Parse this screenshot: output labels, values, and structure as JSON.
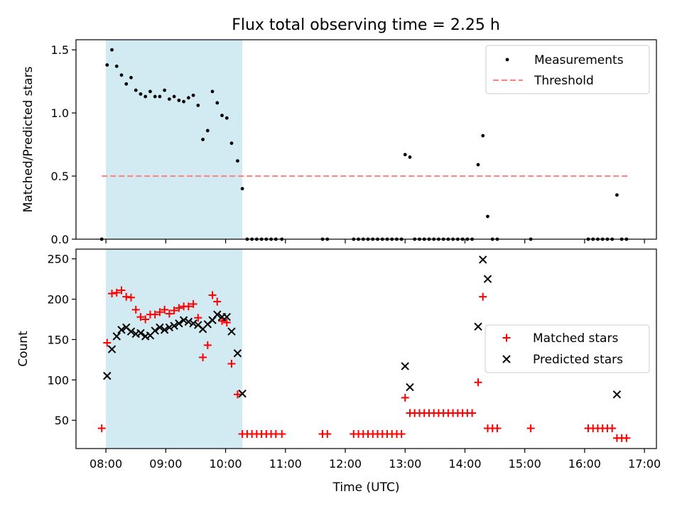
{
  "chart_data": [
    {
      "type": "scatter",
      "panel": "top",
      "title": "Flux total observing time = 2.25 h",
      "xlabel": "",
      "ylabel": "Matched/Predicted stars",
      "xlim": [
        7.5,
        17.2
      ],
      "ylim": [
        0,
        1.58
      ],
      "yticks": [
        0,
        0.5,
        1.0,
        1.5
      ],
      "ytick_labels": [
        "0.0",
        "0.5",
        "1.0",
        "1.5"
      ],
      "shaded_span_hours": [
        8.0,
        10.28
      ],
      "threshold": {
        "y": 0.5,
        "x_range": [
          7.93,
          16.75
        ],
        "color": "#ff7f7f"
      },
      "legend": {
        "position": "top-right",
        "entries": [
          "Measurements",
          "Threshold"
        ]
      },
      "series": [
        {
          "name": "Measurements",
          "marker": "dot",
          "color": "#000000",
          "points": [
            [
              7.93,
              0.0
            ],
            [
              8.02,
              1.38
            ],
            [
              8.1,
              1.5
            ],
            [
              8.18,
              1.37
            ],
            [
              8.26,
              1.3
            ],
            [
              8.34,
              1.23
            ],
            [
              8.42,
              1.28
            ],
            [
              8.5,
              1.18
            ],
            [
              8.58,
              1.15
            ],
            [
              8.66,
              1.13
            ],
            [
              8.74,
              1.17
            ],
            [
              8.82,
              1.13
            ],
            [
              8.9,
              1.13
            ],
            [
              8.98,
              1.18
            ],
            [
              9.06,
              1.11
            ],
            [
              9.14,
              1.13
            ],
            [
              9.22,
              1.1
            ],
            [
              9.3,
              1.09
            ],
            [
              9.38,
              1.12
            ],
            [
              9.46,
              1.14
            ],
            [
              9.54,
              1.06
            ],
            [
              9.62,
              0.79
            ],
            [
              9.7,
              0.86
            ],
            [
              9.78,
              1.17
            ],
            [
              9.86,
              1.08
            ],
            [
              9.94,
              0.98
            ],
            [
              10.02,
              0.96
            ],
            [
              10.1,
              0.76
            ],
            [
              10.2,
              0.62
            ],
            [
              10.28,
              0.4
            ],
            [
              10.36,
              0.0
            ],
            [
              10.44,
              0.0
            ],
            [
              10.52,
              0.0
            ],
            [
              10.6,
              0.0
            ],
            [
              10.68,
              0.0
            ],
            [
              10.76,
              0.0
            ],
            [
              10.84,
              0.0
            ],
            [
              10.94,
              0.0
            ],
            [
              11.62,
              0.0
            ],
            [
              11.7,
              0.0
            ],
            [
              12.14,
              0.0
            ],
            [
              12.22,
              0.0
            ],
            [
              12.3,
              0.0
            ],
            [
              12.38,
              0.0
            ],
            [
              12.46,
              0.0
            ],
            [
              12.54,
              0.0
            ],
            [
              12.62,
              0.0
            ],
            [
              12.7,
              0.0
            ],
            [
              12.78,
              0.0
            ],
            [
              12.86,
              0.0
            ],
            [
              12.94,
              0.0
            ],
            [
              13.0,
              0.67
            ],
            [
              13.08,
              0.65
            ],
            [
              13.16,
              0.0
            ],
            [
              13.24,
              0.0
            ],
            [
              13.32,
              0.0
            ],
            [
              13.4,
              0.0
            ],
            [
              13.48,
              0.0
            ],
            [
              13.56,
              0.0
            ],
            [
              13.64,
              0.0
            ],
            [
              13.72,
              0.0
            ],
            [
              13.8,
              0.0
            ],
            [
              13.88,
              0.0
            ],
            [
              13.96,
              0.0
            ],
            [
              14.04,
              0.0
            ],
            [
              14.12,
              0.0
            ],
            [
              14.22,
              0.59
            ],
            [
              14.3,
              0.82
            ],
            [
              14.38,
              0.18
            ],
            [
              14.46,
              0.0
            ],
            [
              14.54,
              0.0
            ],
            [
              15.1,
              0.0
            ],
            [
              16.06,
              0.0
            ],
            [
              16.14,
              0.0
            ],
            [
              16.22,
              0.0
            ],
            [
              16.3,
              0.0
            ],
            [
              16.38,
              0.0
            ],
            [
              16.46,
              0.0
            ],
            [
              16.54,
              0.35
            ],
            [
              16.62,
              0.0
            ],
            [
              16.7,
              0.0
            ]
          ]
        }
      ]
    },
    {
      "type": "scatter",
      "panel": "bottom",
      "title": "",
      "xlabel": "Time (UTC)",
      "ylabel": "Count",
      "xlim": [
        7.5,
        17.2
      ],
      "ylim": [
        15,
        262
      ],
      "yticks": [
        50,
        100,
        150,
        200,
        250
      ],
      "ytick_labels": [
        "50",
        "100",
        "150",
        "200",
        "250"
      ],
      "xticks": [
        8,
        9,
        10,
        11,
        12,
        13,
        14,
        15,
        16,
        17
      ],
      "xtick_labels": [
        "08:00",
        "09:00",
        "10:00",
        "11:00",
        "12:00",
        "13:00",
        "14:00",
        "15:00",
        "16:00",
        "17:00"
      ],
      "shaded_span_hours": [
        8.0,
        10.28
      ],
      "legend": {
        "position": "center-right",
        "entries": [
          "Matched stars",
          "Predicted stars"
        ]
      },
      "series": [
        {
          "name": "Matched stars",
          "marker": "plus",
          "color": "#ff0000",
          "points": [
            [
              7.93,
              40
            ],
            [
              8.02,
              146
            ],
            [
              8.1,
              207
            ],
            [
              8.18,
              208
            ],
            [
              8.26,
              211
            ],
            [
              8.34,
              203
            ],
            [
              8.42,
              202
            ],
            [
              8.5,
              187
            ],
            [
              8.58,
              178
            ],
            [
              8.66,
              175
            ],
            [
              8.74,
              181
            ],
            [
              8.82,
              181
            ],
            [
              8.9,
              184
            ],
            [
              8.98,
              187
            ],
            [
              9.06,
              182
            ],
            [
              9.14,
              186
            ],
            [
              9.22,
              189
            ],
            [
              9.3,
              191
            ],
            [
              9.38,
              191
            ],
            [
              9.46,
              194
            ],
            [
              9.54,
              177
            ],
            [
              9.62,
              128
            ],
            [
              9.7,
              143
            ],
            [
              9.78,
              205
            ],
            [
              9.86,
              197
            ],
            [
              9.94,
              173
            ],
            [
              10.02,
              171
            ],
            [
              10.1,
              120
            ],
            [
              10.2,
              82
            ],
            [
              10.28,
              33
            ],
            [
              10.36,
              33
            ],
            [
              10.44,
              33
            ],
            [
              10.52,
              33
            ],
            [
              10.6,
              33
            ],
            [
              10.68,
              33
            ],
            [
              10.76,
              33
            ],
            [
              10.84,
              33
            ],
            [
              10.94,
              33
            ],
            [
              11.62,
              33
            ],
            [
              11.7,
              33
            ],
            [
              12.14,
              33
            ],
            [
              12.22,
              33
            ],
            [
              12.3,
              33
            ],
            [
              12.38,
              33
            ],
            [
              12.46,
              33
            ],
            [
              12.54,
              33
            ],
            [
              12.62,
              33
            ],
            [
              12.7,
              33
            ],
            [
              12.78,
              33
            ],
            [
              12.86,
              33
            ],
            [
              12.94,
              33
            ],
            [
              13.0,
              78
            ],
            [
              13.08,
              59
            ],
            [
              13.16,
              59
            ],
            [
              13.24,
              59
            ],
            [
              13.32,
              59
            ],
            [
              13.4,
              59
            ],
            [
              13.48,
              59
            ],
            [
              13.56,
              59
            ],
            [
              13.64,
              59
            ],
            [
              13.72,
              59
            ],
            [
              13.8,
              59
            ],
            [
              13.88,
              59
            ],
            [
              13.96,
              59
            ],
            [
              14.04,
              59
            ],
            [
              14.12,
              59
            ],
            [
              14.22,
              97
            ],
            [
              14.3,
              203
            ],
            [
              14.38,
              40
            ],
            [
              14.46,
              40
            ],
            [
              14.54,
              40
            ],
            [
              15.1,
              40
            ],
            [
              16.06,
              40
            ],
            [
              16.14,
              40
            ],
            [
              16.22,
              40
            ],
            [
              16.3,
              40
            ],
            [
              16.38,
              40
            ],
            [
              16.46,
              40
            ],
            [
              16.54,
              28
            ],
            [
              16.62,
              28
            ],
            [
              16.7,
              28
            ]
          ]
        },
        {
          "name": "Predicted stars",
          "marker": "x",
          "color": "#000000",
          "points": [
            [
              8.02,
              105
            ],
            [
              8.1,
              138
            ],
            [
              8.18,
              154
            ],
            [
              8.26,
              162
            ],
            [
              8.34,
              165
            ],
            [
              8.42,
              160
            ],
            [
              8.5,
              157
            ],
            [
              8.58,
              158
            ],
            [
              8.66,
              154
            ],
            [
              8.74,
              155
            ],
            [
              8.82,
              161
            ],
            [
              8.9,
              165
            ],
            [
              8.98,
              162
            ],
            [
              9.06,
              165
            ],
            [
              9.14,
              167
            ],
            [
              9.22,
              170
            ],
            [
              9.3,
              174
            ],
            [
              9.38,
              172
            ],
            [
              9.46,
              170
            ],
            [
              9.54,
              168
            ],
            [
              9.62,
              163
            ],
            [
              9.7,
              169
            ],
            [
              9.78,
              174
            ],
            [
              9.86,
              181
            ],
            [
              9.94,
              178
            ],
            [
              10.02,
              178
            ],
            [
              10.1,
              160
            ],
            [
              10.2,
              133
            ],
            [
              10.28,
              83
            ],
            [
              13.0,
              117
            ],
            [
              13.08,
              91
            ],
            [
              14.22,
              166
            ],
            [
              14.3,
              249
            ],
            [
              14.38,
              225
            ],
            [
              16.54,
              82
            ]
          ]
        }
      ]
    }
  ]
}
